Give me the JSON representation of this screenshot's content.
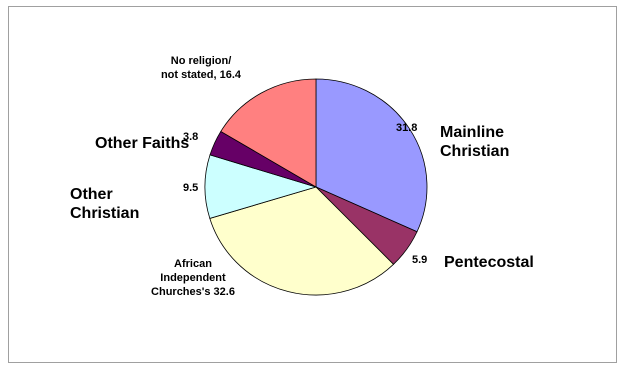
{
  "chart_data": {
    "type": "pie",
    "title": "",
    "slices": [
      {
        "name": "Mainline Christian",
        "value": 31.8,
        "value_label": "31.8",
        "color": "#9999ff"
      },
      {
        "name": "Pentecostal",
        "value": 5.9,
        "value_label": "5.9",
        "color": "#993366"
      },
      {
        "name": "African Independent Churches's",
        "value": 32.6,
        "value_label": "African Independent Churches's 32.6",
        "color": "#ffffcc"
      },
      {
        "name": "Other Christian",
        "value": 9.5,
        "value_label": "9.5",
        "color": "#ccffff"
      },
      {
        "name": "Other Faiths",
        "value": 3.8,
        "value_label": "3.8",
        "color": "#660066"
      },
      {
        "name": "No religion/ not stated",
        "value": 16.4,
        "value_label": "No religion/ not stated, 16.4",
        "color": "#ff8080"
      }
    ],
    "legend": "none"
  },
  "labels": {
    "mainline": "Mainline Christian",
    "pentecostal": "Pentecostal",
    "other_christian": "Other Christian",
    "other_faiths": "Other Faiths",
    "v_mainline": "31.8",
    "v_pentecostal": "5.9",
    "v_other_christian": "9.5",
    "v_other_faiths": "3.8",
    "african_line1": "African",
    "african_line2": "Independent",
    "african_line3": "Churches's 32.6",
    "noreligion_line1": "No religion/",
    "noreligion_line2": "not stated, 16.4"
  }
}
